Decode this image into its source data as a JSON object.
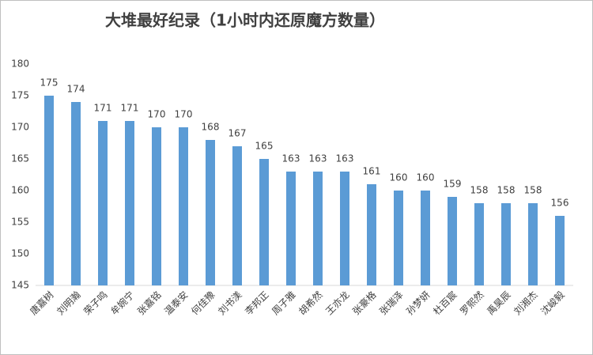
{
  "chart_data": {
    "type": "bar",
    "title": "大堆最好纪录（1小时内还原魔方数量）",
    "categories": [
      "唐嘉树",
      "刘明瀚",
      "荣子鸣",
      "牟婉宁",
      "张嘉铭",
      "温泰安",
      "何佳豫",
      "刘书渼",
      "李邦正",
      "周子雅",
      "胡希然",
      "王亦龙",
      "张豪格",
      "张瑞泽",
      "孙梦妍",
      "杜百宸",
      "罗熙然",
      "禹昊辰",
      "刘湘杰",
      "沈峻毅"
    ],
    "values": [
      175,
      174,
      171,
      171,
      170,
      170,
      168,
      167,
      165,
      163,
      163,
      163,
      161,
      160,
      160,
      159,
      158,
      158,
      158,
      156
    ],
    "color": "#5b9bd5",
    "ylim": [
      145,
      180
    ],
    "yticks": [
      145,
      150,
      155,
      160,
      165,
      170,
      175,
      180
    ],
    "grid": false
  }
}
